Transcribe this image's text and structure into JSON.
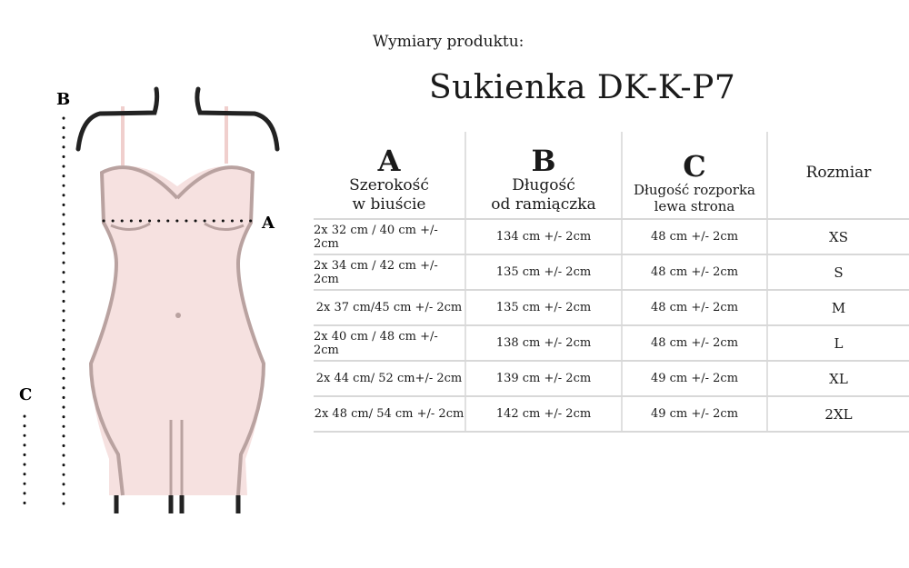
{
  "subtitle": "Wymiary produktu:",
  "title": "Sukienka DK-K-P7",
  "figure": {
    "label_a": "A",
    "label_b": "B",
    "label_c": "C",
    "fill": "#f6e1e0",
    "outline": "#b9a2a0"
  },
  "table": {
    "headers": [
      {
        "letter": "A",
        "line1": "Szerokość",
        "line2": "w biuście"
      },
      {
        "letter": "B",
        "line1": "Długość",
        "line2": "od ramiączka"
      },
      {
        "letter": "C",
        "line1": "Długość rozporka",
        "line2": "lewa strona"
      },
      {
        "letter": "",
        "line1": "Rozmiar",
        "line2": ""
      }
    ],
    "rows": [
      [
        "2x 32 cm / 40 cm +/- 2cm",
        "134 cm +/- 2cm",
        "48 cm +/- 2cm",
        "XS"
      ],
      [
        "2x 34 cm / 42 cm +/- 2cm",
        "135 cm +/- 2cm",
        "48 cm +/- 2cm",
        "S"
      ],
      [
        "2x 37 cm/45 cm +/- 2cm",
        "135 cm +/- 2cm",
        "48 cm +/- 2cm",
        "M"
      ],
      [
        "2x 40 cm / 48 cm +/- 2cm",
        "138 cm +/- 2cm",
        "48 cm +/- 2cm",
        "L"
      ],
      [
        "2x 44 cm/ 52 cm+/- 2cm",
        "139 cm +/- 2cm",
        "49 cm +/- 2cm",
        "XL"
      ],
      [
        "2x 48 cm/ 54 cm +/- 2cm",
        "142 cm +/- 2cm",
        "49 cm +/- 2cm",
        "2XL"
      ]
    ]
  }
}
